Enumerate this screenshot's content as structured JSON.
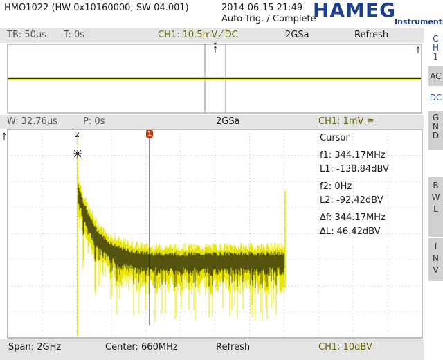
{
  "header": {
    "device_info": "HMO1022 (HW 0x10160000; SW 04.001)",
    "datetime": "2014-06-15 21:49",
    "trigger_status": "Auto-Trig. / Complete",
    "logo_word": "HAMEG",
    "logo_sub": "Instruments"
  },
  "time_bar": {
    "timebase": "TB: 50µs",
    "trigger_time": "T: 0s",
    "channel_setting": "CH1: 10.5mV ⁄ DC",
    "sample_rate": "2GSa",
    "mode": "Refresh"
  },
  "zoom_bar": {
    "window": "W: 32.76µs",
    "position": "P: 0s",
    "sample_rate": "2GSa",
    "channel_setting": "CH1: 1mV ≅"
  },
  "cursor_panel": {
    "title": "Cursor",
    "f1": "f1: 344.17MHz",
    "l1": "L1: -138.84dBV",
    "f2": "f2: 0Hz",
    "l2": "L2: -92.42dBV",
    "df": "Δf: 344.17MHz",
    "dl": "ΔL: 46.42dBV"
  },
  "cursor_markers": {
    "c1": "1",
    "c2": "2"
  },
  "bottom_bar": {
    "span": "Span: 2GHz",
    "center": "Center: 660MHz",
    "mode": "Refresh",
    "channel_scale": "CH1: 10dBV"
  },
  "side_menu": {
    "channel": [
      "C",
      "H",
      "1"
    ],
    "ac": "AC",
    "dc": "DC",
    "gnd": [
      "G",
      "N",
      "D"
    ],
    "bwl": [
      "B",
      "W",
      "L"
    ],
    "inv": [
      "I",
      "N",
      "V"
    ]
  },
  "colors": {
    "trace_yellow": "#e8e600",
    "trace_dark": "#3a3a10",
    "brand_blue": "#1d3e8c",
    "marker_red": "#c04010"
  },
  "icons": {
    "trigger_marker": "trigger-arrow-icon",
    "level_marker": "level-arrow-icon"
  }
}
